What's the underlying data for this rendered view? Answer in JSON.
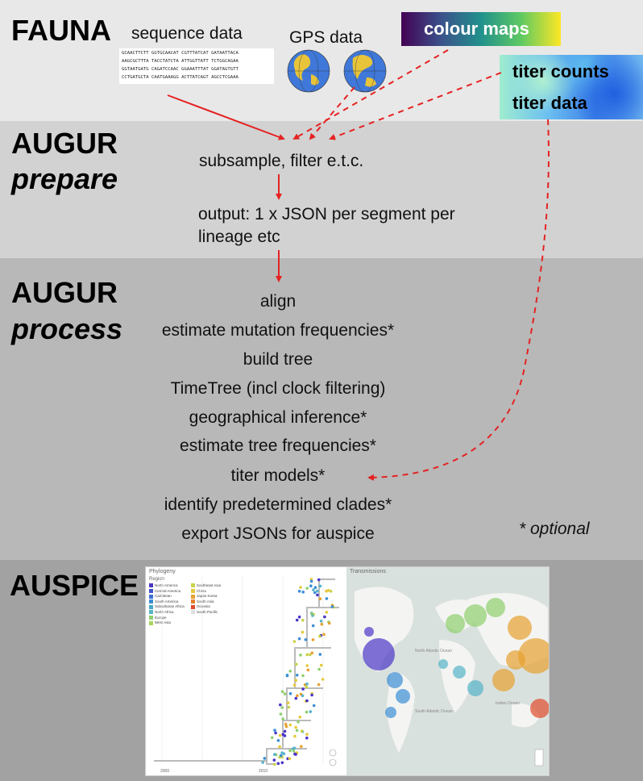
{
  "fauna": {
    "stage": "FAUNA",
    "sequence_label": "sequence data",
    "sequence_lines": [
      "GCAACTTCTT GGTGCAACAT CGTTTATCAT GATAATTACA",
      "AAGCGCTTTA TACCTATCTA ATTGGTTATT TCTGGCAGAA",
      "GGTAATGATG CAGATCCAAC GGAAATTTAT GGATAGTGTT",
      "CCTGATGCTA CAATGAAAGG ACTTATCAGT AGCCTCGAAA"
    ],
    "gps_label": "GPS data",
    "colour_maps_label": "colour maps",
    "titer_counts_label": "titer counts",
    "titer_data_label": "titer data"
  },
  "prepare": {
    "stage_line1": "AUGUR",
    "stage_line2": "prepare",
    "step1": "subsample, filter e.t.c.",
    "step2_line1": "output: 1 x JSON per segment per",
    "step2_line2": "lineage etc"
  },
  "process": {
    "stage_line1": "AUGUR",
    "stage_line2": "process",
    "steps": [
      "align",
      "estimate mutation frequencies*",
      "build tree",
      "TimeTree (incl clock filtering)",
      "geographical inference*",
      "estimate tree frequencies*",
      "titer models*",
      "identify predetermined clades*",
      "export JSONs for auspice"
    ],
    "optional_note": "* optional"
  },
  "auspice": {
    "stage": "AUSPICE",
    "phylogeny_title": "Phylogeny",
    "transmissions_title": "Transmissions",
    "legend_title": "Region",
    "legend_col1": [
      "North America",
      "Central America",
      "Caribbean",
      "South America",
      "Subsaharan Africa",
      "North Africa",
      "Europe",
      "West Asia"
    ],
    "legend_col2": [
      "Southeast Asia",
      "China",
      "Japan Korea",
      "South Asia",
      "Oceania",
      "South Pacific"
    ],
    "axis_ticks": [
      "2000",
      "2010"
    ],
    "map_labels": [
      "North Atlantic Ocean",
      "South Atlantic Ocean",
      "Indian Ocean"
    ],
    "colors": {
      "north_america": "#4a36c8",
      "europe": "#8fcf6e",
      "asia": "#e6a130",
      "south_america": "#3b8ed6",
      "africa": "#55b4c8",
      "oceania": "#e04b2b",
      "arrow": "#e52222"
    }
  }
}
